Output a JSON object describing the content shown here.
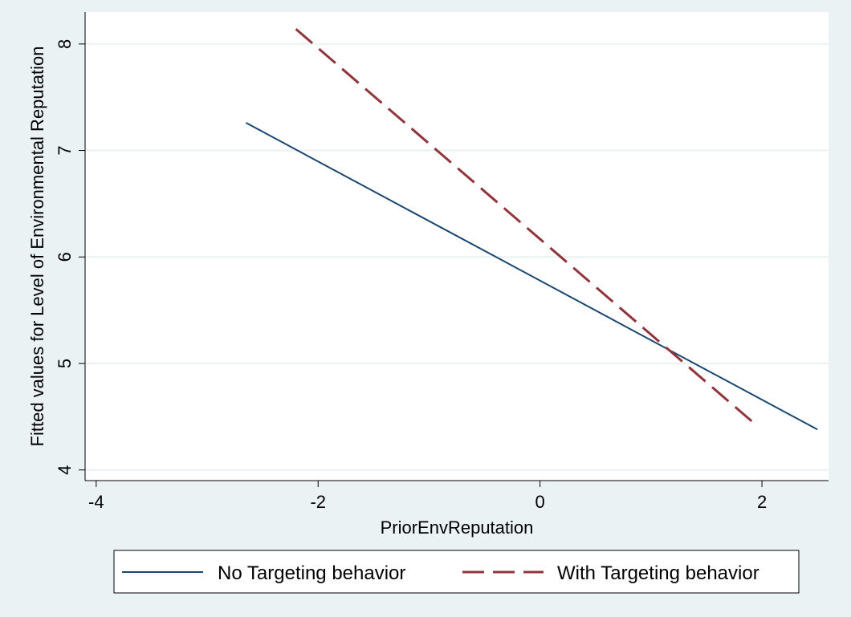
{
  "chart_data": {
    "type": "line",
    "title": "",
    "xlabel": "PriorEnvReputation",
    "ylabel": "Fitted values for Level of Environmental Reputation",
    "xlim": [
      -4.1,
      2.6
    ],
    "ylim": [
      3.9,
      8.3
    ],
    "xticks": [
      -4,
      -2,
      0,
      2
    ],
    "xtick_labels": [
      "-4",
      "-2",
      "0",
      "2"
    ],
    "yticks": [
      4,
      5,
      6,
      7,
      8
    ],
    "ytick_labels": [
      "4",
      "5",
      "6",
      "7",
      "8"
    ],
    "grid": "horizontal",
    "legend_position": "bottom",
    "series": [
      {
        "name": "No Targeting behavior",
        "x": [
          -2.65,
          2.5
        ],
        "y": [
          7.26,
          4.38
        ],
        "color": "#1a476f",
        "style": "solid"
      },
      {
        "name": "With Targeting behavior",
        "x": [
          -2.2,
          1.95
        ],
        "y": [
          8.14,
          4.42
        ],
        "color": "#90353b",
        "style": "dashed"
      }
    ]
  },
  "colors": {
    "background": "#eaf2f3",
    "plot_area": "#ffffff",
    "grid": "#eaf2f3"
  }
}
